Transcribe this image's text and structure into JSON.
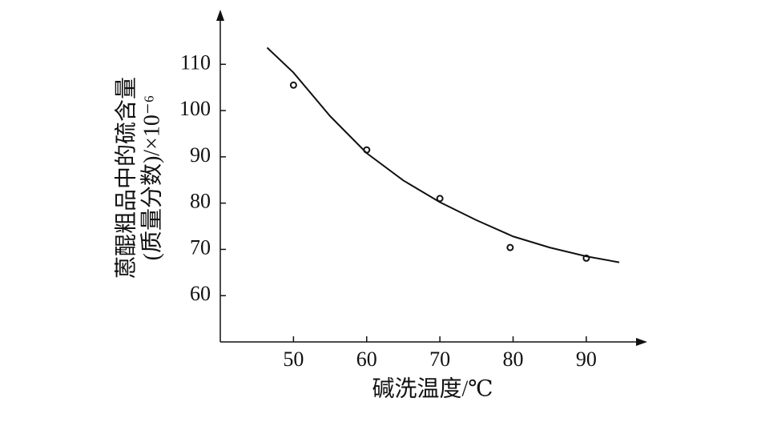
{
  "chart_data": {
    "type": "scatter",
    "xlabel": "碱洗温度/℃",
    "ylabel": [
      "蒽醌粗品中的硫含量",
      "(质量分数)/×10⁻⁶"
    ],
    "points": {
      "x": [
        50,
        60,
        70,
        79.6,
        90
      ],
      "y": [
        105.5,
        91.5,
        81,
        70.4,
        68.1
      ]
    },
    "curve": {
      "x": [
        46.4,
        50,
        55,
        60,
        65,
        70,
        75,
        80,
        85,
        90,
        94.5
      ],
      "y": [
        113.6,
        108.2,
        98.8,
        90.8,
        84.9,
        80.2,
        76.3,
        72.8,
        70.4,
        68.5,
        67.2
      ]
    },
    "color": "#111111",
    "xlim": [
      40,
      98
    ],
    "xticks": [
      50,
      60,
      70,
      80,
      90
    ],
    "ylim": [
      50,
      121.3
    ],
    "yticks": [
      60,
      70,
      80,
      90,
      100,
      110
    ]
  }
}
